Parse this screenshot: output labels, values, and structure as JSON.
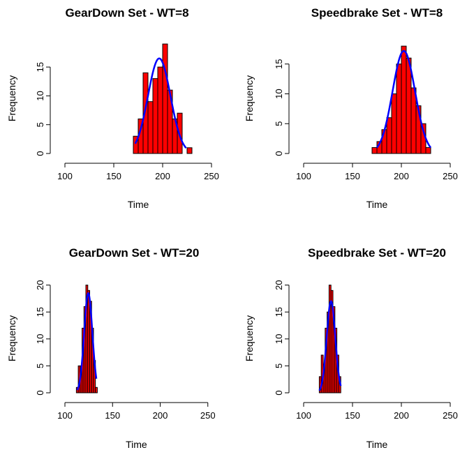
{
  "chart_data": [
    {
      "type": "bar",
      "title": "GearDown Set - WT=8",
      "xlabel": "Time",
      "ylabel": "Frequency",
      "xlim": [
        100,
        250
      ],
      "ylim": [
        0,
        19
      ],
      "x_ticks": [
        100,
        150,
        200,
        250
      ],
      "y_ticks": [
        0,
        5,
        10,
        15
      ],
      "bin_width": 5,
      "bin_starts": [
        170,
        175,
        180,
        185,
        190,
        195,
        200,
        205,
        210,
        215,
        220,
        225
      ],
      "values": [
        3,
        6,
        14,
        9,
        13,
        15,
        19,
        11,
        6,
        7,
        0,
        1
      ],
      "bar_color": "#ff0000",
      "fit_curve": {
        "type": "normal",
        "mean": 196.5,
        "sd": 11.5,
        "peak": 16.5,
        "x_range": [
          172,
          224
        ],
        "color": "#0000ff"
      }
    },
    {
      "type": "bar",
      "title": "Speedbrake Set - WT=8",
      "xlabel": "Time",
      "ylabel": "Frequency",
      "xlim": [
        100,
        250
      ],
      "ylim": [
        0,
        18
      ],
      "x_ticks": [
        100,
        150,
        200,
        250
      ],
      "y_ticks": [
        0,
        5,
        10,
        15
      ],
      "bin_width": 5,
      "bin_starts": [
        170,
        175,
        180,
        185,
        190,
        195,
        200,
        205,
        210,
        215,
        220,
        225
      ],
      "values": [
        1,
        2,
        4,
        6,
        10,
        15,
        18,
        16,
        11,
        8,
        5,
        1
      ],
      "bar_color": "#ff0000",
      "fit_curve": {
        "type": "normal",
        "mean": 202.5,
        "sd": 11.5,
        "peak": 17.2,
        "x_range": [
          175,
          230
        ],
        "color": "#0000ff"
      }
    },
    {
      "type": "bar",
      "title": "GearDown Set - WT=20",
      "xlabel": "Time",
      "ylabel": "Frequency",
      "xlim": [
        100,
        250
      ],
      "ylim": [
        0,
        20
      ],
      "x_ticks": [
        100,
        150,
        200,
        250
      ],
      "y_ticks": [
        0,
        5,
        10,
        15,
        20
      ],
      "bin_width": 2,
      "bin_starts": [
        112,
        114,
        116,
        118,
        120,
        122,
        124,
        126,
        128,
        130,
        132
      ],
      "values": [
        1,
        5,
        5,
        12,
        16,
        20,
        19,
        17,
        12,
        6,
        1
      ],
      "bar_color": "#ff0000",
      "fit_curve": {
        "type": "normal",
        "mean": 124.5,
        "sd": 4.3,
        "peak": 18.5,
        "x_range": [
          113,
          133
        ],
        "color": "#0000ff"
      }
    },
    {
      "type": "bar",
      "title": "Speedbrake Set - WT=20",
      "xlabel": "Time",
      "ylabel": "Frequency",
      "xlim": [
        100,
        250
      ],
      "ylim": [
        0,
        20
      ],
      "x_ticks": [
        100,
        150,
        200,
        250
      ],
      "y_ticks": [
        0,
        5,
        10,
        15,
        20
      ],
      "bin_width": 2,
      "bin_starts": [
        116,
        118,
        120,
        122,
        124,
        126,
        128,
        130,
        132,
        134,
        136
      ],
      "values": [
        3,
        7,
        5,
        12,
        15,
        20,
        19,
        16,
        12,
        7,
        3
      ],
      "bar_color": "#ff0000",
      "fit_curve": {
        "type": "normal",
        "mean": 128,
        "sd": 4.4,
        "peak": 17,
        "x_range": [
          116,
          138
        ],
        "color": "#0000ff"
      }
    }
  ]
}
